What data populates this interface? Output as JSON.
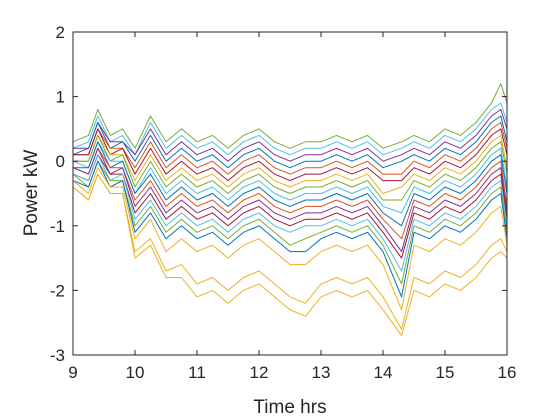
{
  "chart_data": {
    "type": "line",
    "title": "",
    "xlabel": "Time hrs",
    "ylabel": "Power kW",
    "xlim": [
      9,
      16
    ],
    "ylim": [
      -3,
      2
    ],
    "xticks": [
      9,
      10,
      11,
      12,
      13,
      14,
      15,
      16
    ],
    "yticks": [
      2,
      1,
      0,
      -1,
      -2,
      -3
    ],
    "xtick_labels": [
      "9",
      "10",
      "11",
      "12",
      "13",
      "14",
      "15",
      "16"
    ],
    "ytick_labels": [
      "2",
      "1",
      "0",
      "-1",
      "-2",
      "-3"
    ],
    "grid": false,
    "legend": "none",
    "x": [
      9.0,
      9.25,
      9.4,
      9.6,
      9.8,
      10.0,
      10.25,
      10.5,
      10.75,
      11.0,
      11.25,
      11.5,
      11.75,
      12.0,
      12.25,
      12.5,
      12.75,
      13.0,
      13.25,
      13.5,
      13.75,
      14.0,
      14.3,
      14.5,
      14.75,
      15.0,
      15.25,
      15.5,
      15.75,
      15.9,
      16.0
    ],
    "series": [
      {
        "color": "#77AC30",
        "values": [
          0.3,
          0.4,
          0.8,
          0.4,
          0.5,
          0.2,
          0.7,
          0.3,
          0.5,
          0.3,
          0.4,
          0.2,
          0.4,
          0.5,
          0.3,
          0.2,
          0.3,
          0.3,
          0.4,
          0.3,
          0.4,
          0.2,
          0.3,
          0.4,
          0.3,
          0.5,
          0.4,
          0.6,
          0.9,
          1.2,
          0.9
        ]
      },
      {
        "color": "#4DBEEE",
        "values": [
          0.2,
          0.3,
          0.7,
          0.3,
          0.4,
          0.1,
          0.6,
          0.2,
          0.4,
          0.2,
          0.3,
          0.1,
          0.3,
          0.4,
          0.2,
          0.1,
          0.2,
          0.2,
          0.3,
          0.2,
          0.3,
          0.1,
          0.2,
          0.3,
          0.2,
          0.4,
          0.3,
          0.5,
          0.8,
          0.9,
          0.6
        ]
      },
      {
        "color": "#7E2F8E",
        "values": [
          0.2,
          0.2,
          0.6,
          0.3,
          0.3,
          0.1,
          0.5,
          0.1,
          0.3,
          0.1,
          0.2,
          0.0,
          0.2,
          0.3,
          0.1,
          0.0,
          0.1,
          0.1,
          0.2,
          0.1,
          0.2,
          0.0,
          0.1,
          0.2,
          0.1,
          0.3,
          0.2,
          0.4,
          0.7,
          0.8,
          0.5
        ]
      },
      {
        "color": "#0072BD",
        "values": [
          0.1,
          0.2,
          0.6,
          0.2,
          0.3,
          0.0,
          0.4,
          0.0,
          0.2,
          0.0,
          0.1,
          -0.1,
          0.1,
          0.2,
          0.0,
          -0.1,
          0.0,
          0.0,
          0.1,
          0.0,
          0.1,
          -0.1,
          0.0,
          0.1,
          0.0,
          0.2,
          0.1,
          0.3,
          0.6,
          0.7,
          0.3
        ]
      },
      {
        "color": "#D95319",
        "values": [
          0.1,
          0.1,
          0.5,
          0.2,
          0.2,
          -0.1,
          0.3,
          -0.1,
          0.1,
          -0.1,
          0.0,
          -0.2,
          0.0,
          0.1,
          -0.1,
          -0.2,
          -0.1,
          -0.1,
          0.0,
          -0.1,
          0.0,
          -0.2,
          -0.2,
          0.0,
          -0.1,
          0.1,
          0.0,
          0.2,
          0.5,
          0.6,
          0.2
        ]
      },
      {
        "color": "#A2142F",
        "values": [
          0.1,
          0.1,
          0.5,
          0.1,
          0.2,
          -0.2,
          0.2,
          -0.2,
          0.0,
          -0.2,
          -0.1,
          -0.3,
          -0.1,
          0.0,
          -0.2,
          -0.3,
          -0.2,
          -0.2,
          -0.1,
          -0.2,
          -0.1,
          -0.3,
          -0.3,
          -0.1,
          -0.2,
          0.0,
          -0.1,
          0.1,
          0.4,
          0.5,
          0.1
        ]
      },
      {
        "color": "#EDB120",
        "values": [
          0.0,
          0.0,
          0.4,
          0.1,
          0.1,
          -0.3,
          0.1,
          -0.3,
          -0.1,
          -0.3,
          -0.2,
          -0.4,
          -0.2,
          -0.1,
          -0.3,
          -0.4,
          -0.3,
          -0.3,
          -0.2,
          -0.3,
          -0.2,
          -0.5,
          -0.4,
          -0.2,
          -0.3,
          -0.1,
          -0.2,
          0.0,
          0.3,
          0.4,
          -0.1
        ]
      },
      {
        "color": "#77AC30",
        "values": [
          0.0,
          0.0,
          0.4,
          0.0,
          0.1,
          -0.4,
          0.0,
          -0.4,
          -0.2,
          -0.4,
          -0.3,
          -0.5,
          -0.3,
          -0.2,
          -0.4,
          -0.5,
          -0.4,
          -0.4,
          -0.3,
          -0.4,
          -0.3,
          -0.6,
          -0.6,
          -0.3,
          -0.4,
          -0.2,
          -0.3,
          -0.1,
          0.2,
          0.3,
          -0.2
        ]
      },
      {
        "color": "#4DBEEE",
        "values": [
          0.0,
          -0.1,
          0.3,
          0.0,
          0.0,
          -0.5,
          -0.1,
          -0.5,
          -0.3,
          -0.5,
          -0.4,
          -0.6,
          -0.4,
          -0.3,
          -0.5,
          -0.6,
          -0.5,
          -0.5,
          -0.4,
          -0.5,
          -0.4,
          -0.7,
          -0.8,
          -0.4,
          -0.5,
          -0.3,
          -0.4,
          -0.2,
          0.1,
          0.2,
          -0.4
        ]
      },
      {
        "color": "#0072BD",
        "values": [
          -0.1,
          -0.1,
          0.3,
          -0.1,
          0.0,
          -0.5,
          -0.2,
          -0.6,
          -0.4,
          -0.6,
          -0.5,
          -0.7,
          -0.5,
          -0.4,
          -0.6,
          -0.7,
          -0.6,
          -0.6,
          -0.5,
          -0.6,
          -0.5,
          -0.8,
          -1.0,
          -0.5,
          -0.6,
          -0.4,
          -0.5,
          -0.3,
          0.0,
          0.1,
          -0.5
        ]
      },
      {
        "color": "#D95319",
        "values": [
          -0.1,
          -0.2,
          0.2,
          -0.1,
          -0.1,
          -0.6,
          -0.3,
          -0.7,
          -0.5,
          -0.7,
          -0.6,
          -0.8,
          -0.6,
          -0.5,
          -0.7,
          -0.8,
          -0.7,
          -0.7,
          -0.6,
          -0.7,
          -0.6,
          -0.9,
          -1.2,
          -0.6,
          -0.7,
          -0.5,
          -0.6,
          -0.4,
          -0.1,
          0.0,
          -0.7
        ]
      },
      {
        "color": "#7E2F8E",
        "values": [
          -0.1,
          -0.2,
          0.2,
          -0.2,
          -0.1,
          -0.7,
          -0.4,
          -0.8,
          -0.6,
          -0.8,
          -0.7,
          -0.9,
          -0.7,
          -0.6,
          -0.8,
          -0.9,
          -0.8,
          -0.8,
          -0.7,
          -0.8,
          -0.7,
          -1.0,
          -1.4,
          -0.7,
          -0.8,
          -0.6,
          -0.7,
          -0.5,
          -0.2,
          -0.1,
          -0.8
        ]
      },
      {
        "color": "#A2142F",
        "values": [
          -0.2,
          -0.3,
          0.1,
          -0.2,
          -0.2,
          -0.8,
          -0.5,
          -0.9,
          -0.7,
          -0.9,
          -0.8,
          -1.0,
          -0.8,
          -0.7,
          -0.9,
          -1.0,
          -0.9,
          -0.9,
          -0.8,
          -0.9,
          -0.8,
          -1.1,
          -1.5,
          -0.8,
          -0.9,
          -0.7,
          -0.8,
          -0.6,
          -0.3,
          -0.2,
          -0.9
        ]
      },
      {
        "color": "#4DBEEE",
        "values": [
          -0.2,
          -0.3,
          0.1,
          -0.3,
          -0.2,
          -0.9,
          -0.6,
          -1.0,
          -0.8,
          -1.0,
          -0.9,
          -1.1,
          -0.9,
          -0.8,
          -1.0,
          -1.1,
          -1.0,
          -1.0,
          -0.9,
          -1.0,
          -0.9,
          -1.2,
          -1.7,
          -0.9,
          -1.0,
          -0.8,
          -0.9,
          -0.7,
          -0.4,
          -0.3,
          -1.0
        ]
      },
      {
        "color": "#77AC30",
        "values": [
          -0.2,
          -0.4,
          0.0,
          -0.3,
          -0.3,
          -1.0,
          -0.7,
          -1.1,
          -0.9,
          -1.1,
          -1.0,
          -1.2,
          -1.0,
          -0.9,
          -1.1,
          -1.3,
          -1.2,
          -1.1,
          -1.0,
          -1.1,
          -1.0,
          -1.3,
          -1.9,
          -1.0,
          -1.1,
          -0.9,
          -1.0,
          -0.8,
          -0.5,
          -0.4,
          -1.1
        ]
      },
      {
        "color": "#0072BD",
        "values": [
          -0.3,
          -0.4,
          0.0,
          -0.4,
          -0.3,
          -1.1,
          -0.8,
          -1.2,
          -1.0,
          -1.2,
          -1.1,
          -1.3,
          -1.1,
          -1.0,
          -1.2,
          -1.4,
          -1.4,
          -1.2,
          -1.1,
          -1.2,
          -1.1,
          -1.4,
          -2.1,
          -1.1,
          -1.2,
          -1.0,
          -1.1,
          -0.9,
          -0.6,
          -0.5,
          -1.2
        ]
      },
      {
        "color": "#EDB120",
        "values": [
          -0.3,
          -0.5,
          -0.1,
          -0.4,
          -0.4,
          -1.2,
          -0.9,
          -1.4,
          -1.2,
          -1.4,
          -1.3,
          -1.5,
          -1.3,
          -1.2,
          -1.4,
          -1.6,
          -1.6,
          -1.4,
          -1.3,
          -1.4,
          -1.3,
          -1.6,
          -2.3,
          -1.3,
          -1.4,
          -1.2,
          -1.3,
          -1.1,
          -0.8,
          -0.7,
          -1.3
        ]
      },
      {
        "color": "#EDB120",
        "values": [
          -0.4,
          -0.6,
          -0.2,
          -0.5,
          -0.5,
          -1.4,
          -1.2,
          -1.7,
          -1.6,
          -1.9,
          -1.8,
          -2.0,
          -1.8,
          -1.7,
          -1.9,
          -2.1,
          -2.2,
          -1.9,
          -1.8,
          -1.9,
          -1.8,
          -2.1,
          -2.6,
          -1.8,
          -1.9,
          -1.7,
          -1.8,
          -1.6,
          -1.3,
          -1.2,
          -1.4
        ]
      },
      {
        "color": "#EDB120",
        "values": [
          -0.4,
          -0.6,
          -0.2,
          -0.5,
          -0.5,
          -1.5,
          -1.3,
          -1.8,
          -1.8,
          -2.1,
          -2.0,
          -2.2,
          -2.0,
          -1.9,
          -2.1,
          -2.3,
          -2.4,
          -2.1,
          -2.0,
          -2.1,
          -2.0,
          -2.3,
          -2.7,
          -2.0,
          -2.1,
          -1.9,
          -2.0,
          -1.8,
          -1.5,
          -1.4,
          -1.5
        ]
      }
    ]
  }
}
